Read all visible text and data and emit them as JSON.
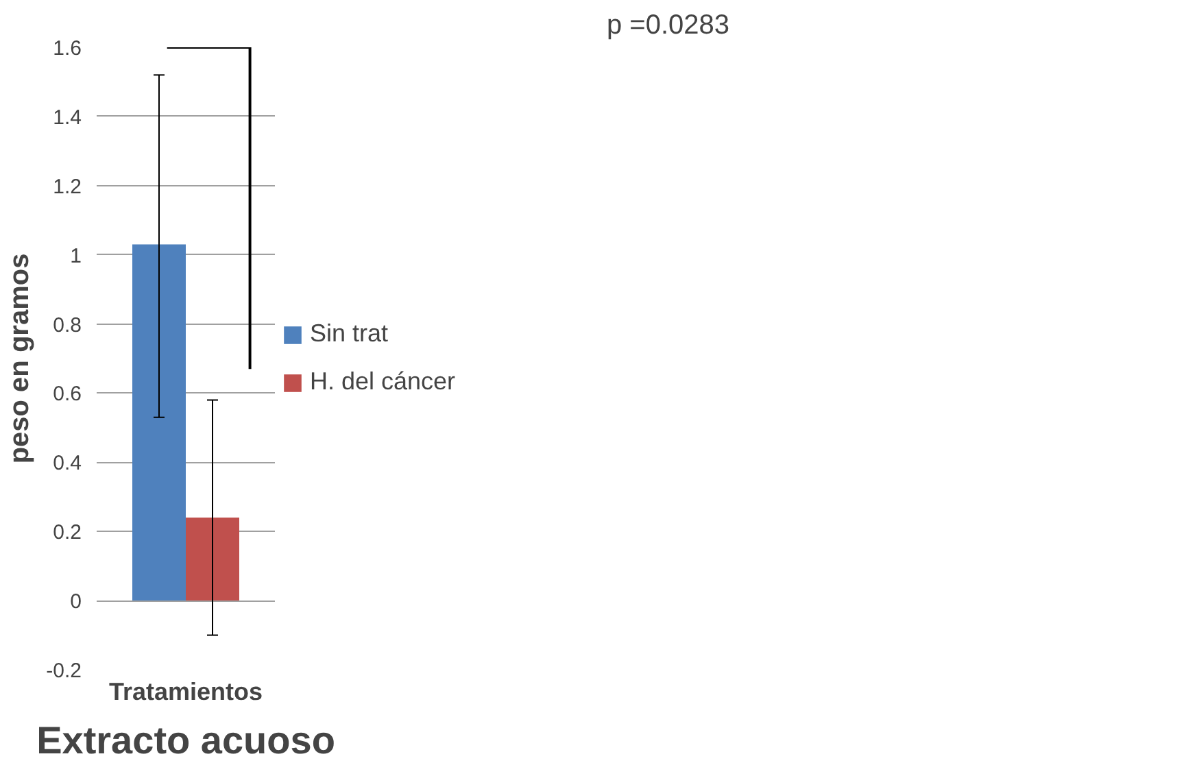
{
  "chart_data": {
    "type": "bar",
    "title": "Extracto acuoso",
    "xlabel": "Tratamientos",
    "ylabel": "peso en gramos",
    "categories": [
      null
    ],
    "series": [
      {
        "name": "Sin trat",
        "color": "#4f81bd",
        "values": [
          1.03
        ],
        "errors": [
          [
            0.53,
            1.52
          ]
        ]
      },
      {
        "name": "H. del cáncer",
        "color": "#c0504d",
        "values": [
          0.24
        ],
        "errors": [
          [
            -0.1,
            0.58
          ]
        ]
      }
    ],
    "ylim": [
      -0.2,
      1.6
    ],
    "yticks": [
      -0.2,
      0,
      0.2,
      0.4,
      0.6,
      0.8,
      1,
      1.2,
      1.4,
      1.6
    ],
    "grid": "y",
    "legend": "right",
    "annotations": [
      "p =0.0283"
    ]
  }
}
